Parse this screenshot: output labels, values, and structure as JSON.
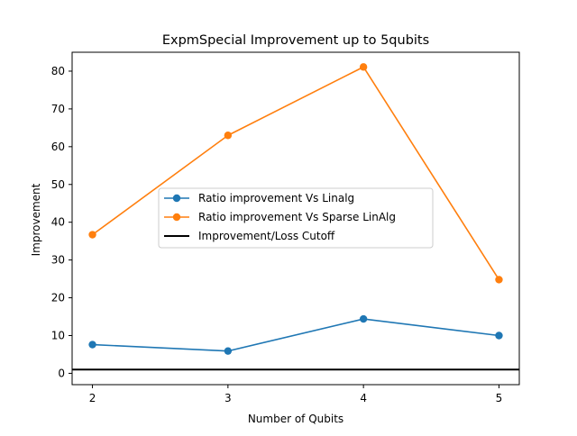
{
  "chart_data": {
    "type": "line",
    "title": "ExpmSpecial Improvement up to 5qubits",
    "xlabel": "Number of Qubits",
    "ylabel": "Improvement",
    "x": [
      2,
      3,
      4,
      5
    ],
    "xticks": [
      "2",
      "3",
      "4",
      "5"
    ],
    "xlim": [
      1.85,
      5.15
    ],
    "ylim": [
      -3,
      85
    ],
    "yticks": [
      "0",
      "10",
      "20",
      "30",
      "40",
      "50",
      "60",
      "70",
      "80"
    ],
    "grid": false,
    "legend_position": "center",
    "series": [
      {
        "name": "Ratio improvement Vs Linalg",
        "values": [
          7.6,
          5.9,
          14.4,
          10.0
        ],
        "color": "#1f77b4",
        "marker": "circle"
      },
      {
        "name": "Ratio improvement Vs Sparse LinAlg",
        "values": [
          36.7,
          63.0,
          81.1,
          24.8
        ],
        "color": "#ff7f0e",
        "marker": "circle"
      }
    ],
    "reference_line": {
      "name": "Improvement/Loss Cutoff",
      "y": 1,
      "color": "#000000"
    }
  }
}
